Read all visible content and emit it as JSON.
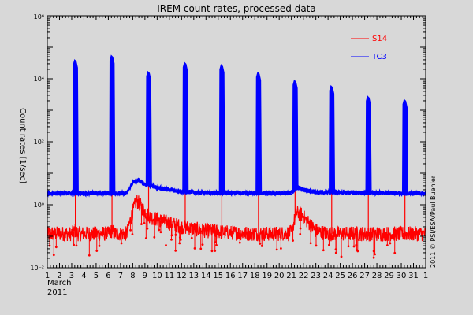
{
  "chart_data": {
    "type": "line",
    "title": "IREM count rates, processed data",
    "ylabel": "Count rates [1/sec]",
    "xlabel_line1": "March",
    "xlabel_line2": "2011",
    "credit": "2011 © PSI/ESA/Paul Buehler",
    "y_scale": "log",
    "ylim": [
      0.01,
      1000000
    ],
    "y_ticks": [
      {
        "value": 0.01,
        "label": "10⁻²"
      },
      {
        "value": 1,
        "label": "10⁰"
      },
      {
        "value": 100,
        "label": "10²"
      },
      {
        "value": 10000,
        "label": "10⁴"
      },
      {
        "value": 1000000,
        "label": "10⁶"
      }
    ],
    "xlim": [
      1,
      32
    ],
    "x_tick_labels": [
      "1",
      "2",
      "3",
      "4",
      "5",
      "6",
      "7",
      "8",
      "9",
      "10",
      "11",
      "12",
      "13",
      "14",
      "15",
      "16",
      "17",
      "18",
      "19",
      "20",
      "21",
      "22",
      "23",
      "24",
      "25",
      "26",
      "27",
      "28",
      "29",
      "30",
      "31",
      "1"
    ],
    "legend_position": "top-right",
    "series": [
      {
        "name": "S14",
        "color": "#ff0000",
        "baseline": 0.14,
        "x": [
          1.0,
          3.0,
          3.3,
          3.5,
          6.0,
          6.3,
          6.5,
          7.5,
          8.0,
          8.3,
          8.6,
          9.0,
          9.5,
          10.5,
          12.0,
          14.0,
          16.0,
          18.0,
          20.0,
          21.0,
          21.4,
          21.8,
          22.3,
          23.0,
          24.0,
          26.0,
          28.0,
          30.0,
          32.0
        ],
        "y": [
          0.12,
          0.12,
          0.15,
          0.12,
          0.12,
          0.15,
          0.12,
          0.12,
          0.6,
          1.4,
          1.0,
          0.6,
          0.4,
          0.3,
          0.2,
          0.15,
          0.13,
          0.12,
          0.12,
          0.13,
          0.55,
          0.5,
          0.3,
          0.15,
          0.12,
          0.12,
          0.12,
          0.12,
          0.12
        ],
        "spikes": [
          {
            "x": 3.3,
            "y": 50
          },
          {
            "x": 6.3,
            "y": 60
          },
          {
            "x": 9.3,
            "y": 20
          },
          {
            "x": 12.3,
            "y": 15
          },
          {
            "x": 15.3,
            "y": 20
          },
          {
            "x": 18.3,
            "y": 10
          },
          {
            "x": 21.3,
            "y": 30
          },
          {
            "x": 24.3,
            "y": 8
          },
          {
            "x": 27.3,
            "y": 5
          },
          {
            "x": 30.3,
            "y": 8
          }
        ]
      },
      {
        "name": "TC3",
        "color": "#0000ff",
        "baseline": 2.2,
        "x": [
          1.0,
          7.5,
          8.0,
          8.5,
          9.0,
          10.0,
          11.0,
          12.0,
          14.0,
          20.0,
          21.0,
          21.5,
          22.0,
          23.0,
          32.0
        ],
        "y": [
          2.3,
          2.3,
          5.0,
          6.0,
          4.5,
          3.5,
          3.0,
          2.6,
          2.4,
          2.3,
          2.4,
          3.5,
          3.0,
          2.5,
          2.3
        ],
        "peaks": [
          {
            "x": 3.3,
            "y": 40000
          },
          {
            "x": 6.3,
            "y": 55000
          },
          {
            "x": 9.3,
            "y": 17000
          },
          {
            "x": 12.3,
            "y": 33000
          },
          {
            "x": 15.3,
            "y": 28000
          },
          {
            "x": 18.3,
            "y": 16000
          },
          {
            "x": 21.3,
            "y": 9000
          },
          {
            "x": 24.3,
            "y": 6000
          },
          {
            "x": 27.3,
            "y": 2800
          },
          {
            "x": 30.3,
            "y": 2200
          }
        ]
      }
    ]
  }
}
